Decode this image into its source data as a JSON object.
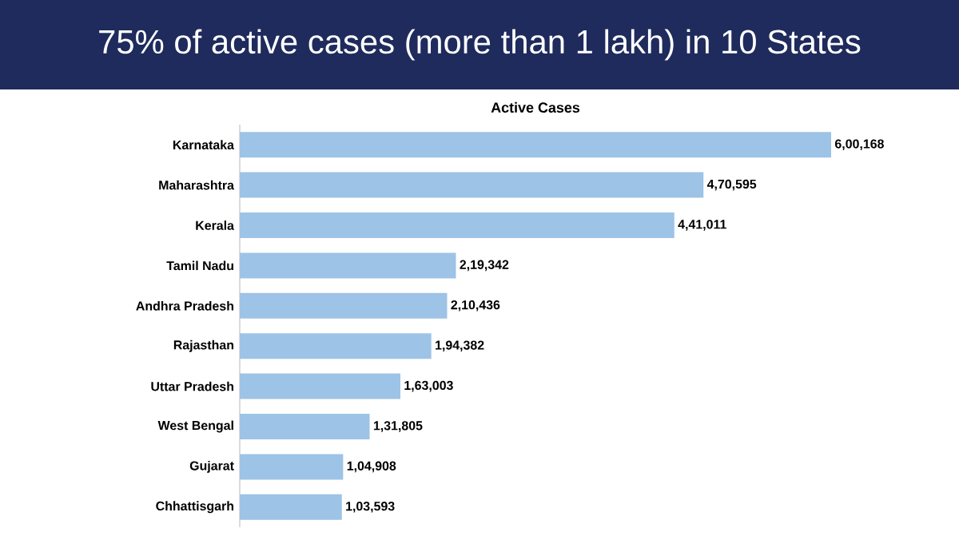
{
  "chart_data": {
    "type": "bar",
    "orientation": "horizontal",
    "title": "75% of active cases (more than 1 lakh) in 10 States",
    "subtitle": "Active Cases",
    "categories": [
      "Karnataka",
      "Maharashtra",
      "Kerala",
      "Tamil Nadu",
      "Andhra Pradesh",
      "Rajasthan",
      "Uttar Pradesh",
      "West Bengal",
      "Gujarat",
      "Chhattisgarh"
    ],
    "values": [
      600168,
      470595,
      441011,
      219342,
      210436,
      194382,
      163003,
      131805,
      104908,
      103593
    ],
    "value_labels": [
      "6,00,168",
      "4,70,595",
      "4,41,011",
      "2,19,342",
      "2,10,436",
      "1,94,382",
      "1,63,003",
      "1,31,805",
      "1,04,908",
      "1,03,593"
    ],
    "color": "#9dc3e6"
  }
}
